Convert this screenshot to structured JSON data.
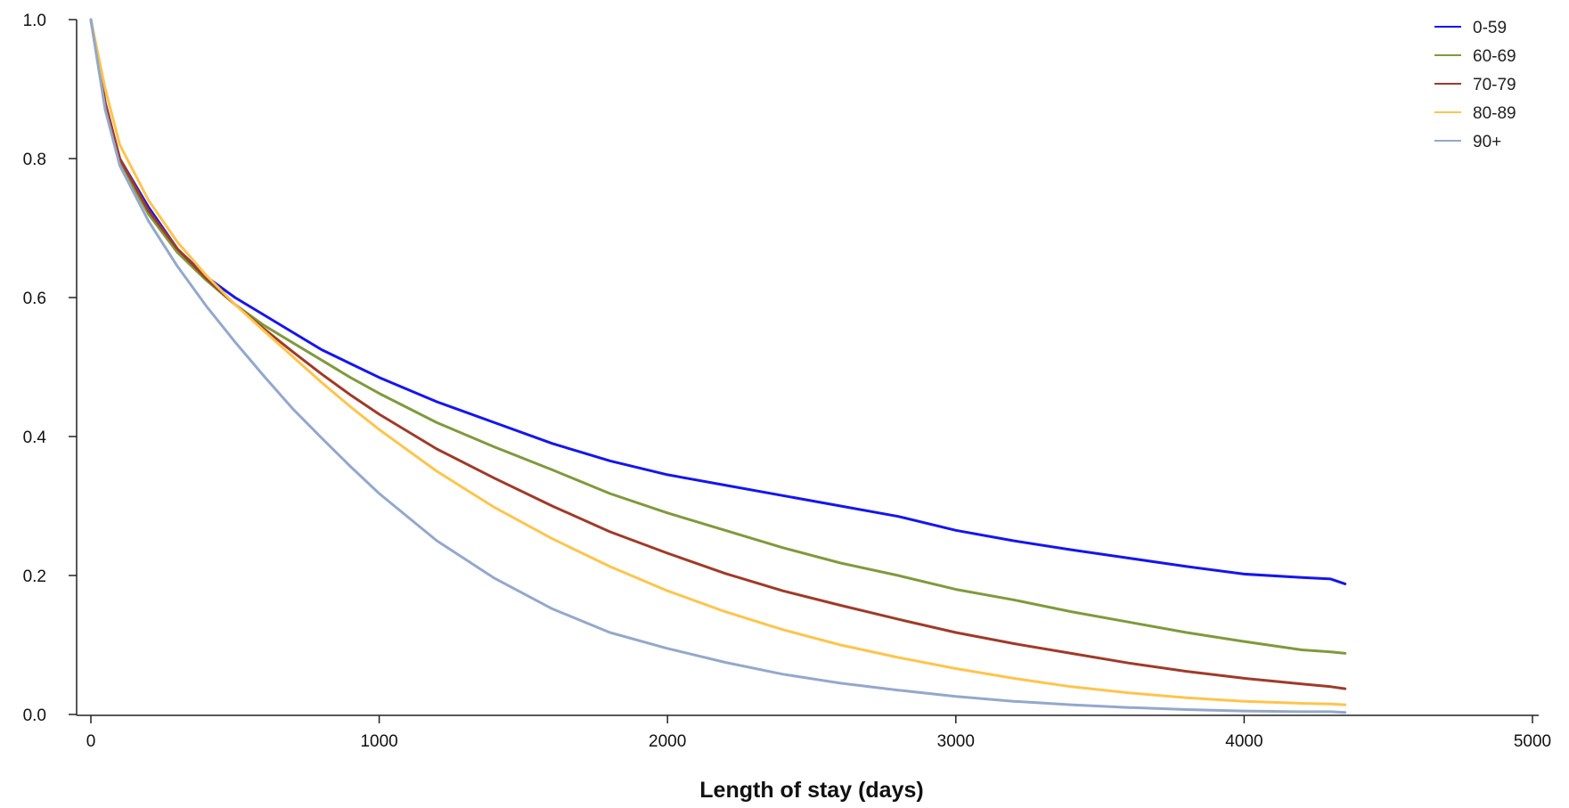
{
  "chart_data": {
    "type": "line",
    "title": "",
    "xlabel": "Length of stay (days)",
    "ylabel": "",
    "xlim": [
      0,
      5000
    ],
    "ylim": [
      0,
      1
    ],
    "xticks": [
      0,
      1000,
      2000,
      3000,
      4000,
      5000
    ],
    "xtick_labels": [
      "0",
      "1000",
      "2000",
      "3000",
      "4000",
      "5000"
    ],
    "yticks": [
      0,
      0.2,
      0.4,
      0.6,
      0.8,
      1.0
    ],
    "ytick_labels": [
      "0.0",
      "0.2",
      "0.4",
      "0.6",
      "0.8",
      "1.0"
    ],
    "grid": false,
    "legend_position": "top-right",
    "x": [
      0,
      50,
      100,
      200,
      300,
      400,
      500,
      600,
      700,
      800,
      900,
      1000,
      1200,
      1400,
      1600,
      1800,
      2000,
      2200,
      2400,
      2600,
      2800,
      3000,
      3200,
      3400,
      3600,
      3800,
      4000,
      4200,
      4300,
      4350
    ],
    "series": [
      {
        "name": "0-59",
        "color": "#1515f0",
        "values": [
          1.0,
          0.88,
          0.8,
          0.73,
          0.67,
          0.63,
          0.6,
          0.575,
          0.55,
          0.525,
          0.505,
          0.485,
          0.45,
          0.42,
          0.39,
          0.365,
          0.345,
          0.33,
          0.315,
          0.3,
          0.285,
          0.265,
          0.25,
          0.237,
          0.225,
          0.213,
          0.202,
          0.197,
          0.195,
          0.188
        ]
      },
      {
        "name": "60-69",
        "color": "#7f9a3c",
        "values": [
          1.0,
          0.87,
          0.795,
          0.72,
          0.665,
          0.625,
          0.59,
          0.56,
          0.535,
          0.51,
          0.485,
          0.462,
          0.42,
          0.385,
          0.352,
          0.318,
          0.29,
          0.265,
          0.24,
          0.218,
          0.2,
          0.18,
          0.165,
          0.148,
          0.133,
          0.118,
          0.105,
          0.093,
          0.09,
          0.088
        ]
      },
      {
        "name": "70-79",
        "color": "#a03a28",
        "values": [
          1.0,
          0.88,
          0.8,
          0.725,
          0.67,
          0.628,
          0.59,
          0.555,
          0.522,
          0.49,
          0.46,
          0.432,
          0.382,
          0.34,
          0.3,
          0.263,
          0.232,
          0.203,
          0.178,
          0.157,
          0.137,
          0.118,
          0.102,
          0.088,
          0.074,
          0.062,
          0.052,
          0.044,
          0.04,
          0.037
        ]
      },
      {
        "name": "80-89",
        "color": "#ffc44d",
        "values": [
          1.0,
          0.9,
          0.82,
          0.74,
          0.68,
          0.632,
          0.59,
          0.552,
          0.515,
          0.478,
          0.443,
          0.41,
          0.35,
          0.298,
          0.253,
          0.213,
          0.178,
          0.148,
          0.122,
          0.1,
          0.082,
          0.066,
          0.052,
          0.04,
          0.031,
          0.024,
          0.019,
          0.016,
          0.015,
          0.014
        ]
      },
      {
        "name": "90+",
        "color": "#94a8cc",
        "values": [
          1.0,
          0.87,
          0.79,
          0.71,
          0.645,
          0.588,
          0.536,
          0.487,
          0.44,
          0.398,
          0.357,
          0.318,
          0.25,
          0.196,
          0.152,
          0.118,
          0.095,
          0.075,
          0.058,
          0.045,
          0.035,
          0.026,
          0.019,
          0.014,
          0.01,
          0.007,
          0.005,
          0.004,
          0.004,
          0.003
        ]
      }
    ]
  }
}
